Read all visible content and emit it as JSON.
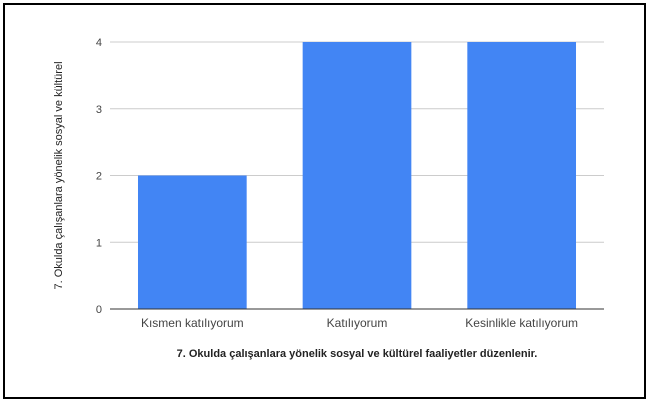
{
  "chart_data": {
    "type": "bar",
    "categories": [
      "Kısmen katılıyorum",
      "Katılıyorum",
      "Kesinlikle katılıyorum"
    ],
    "values": [
      2,
      4,
      4
    ],
    "title": "",
    "xlabel": "7. Okulda çalışanlara yönelik sosyal ve kültürel faaliyetler düzenlenir.",
    "ylabel": "7. Okulda çalışanlara yönelik sosyal ve kültürel",
    "ylim": [
      0,
      4
    ],
    "yticks": [
      0,
      1,
      2,
      3,
      4
    ],
    "grid": true,
    "legend": "none",
    "bar_color": "#4285f4",
    "grid_color": "#cccccc",
    "axis_color": "#333333"
  }
}
